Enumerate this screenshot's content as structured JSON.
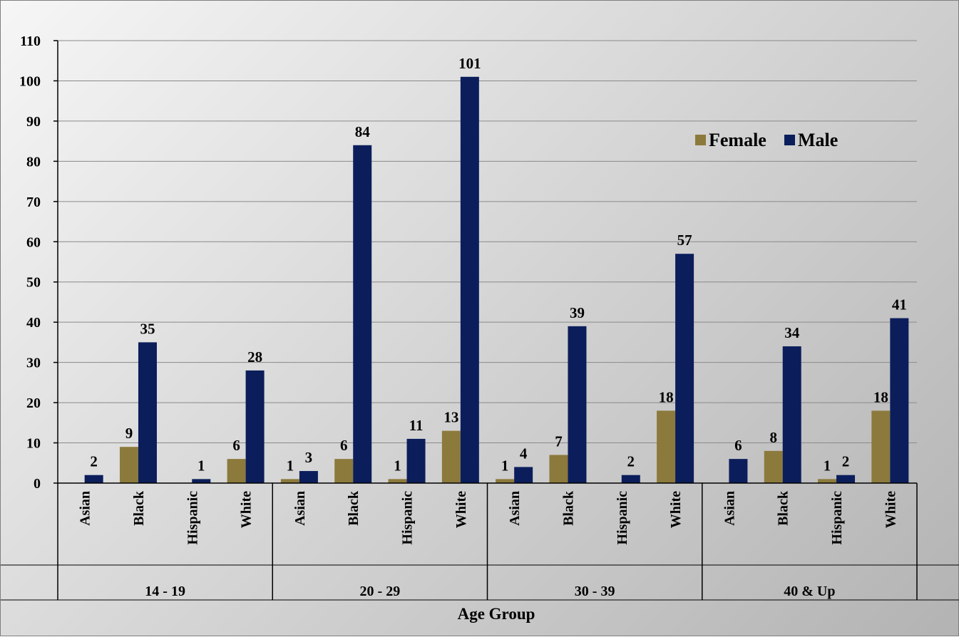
{
  "chart_data": {
    "type": "bar",
    "title": "",
    "xlabel": "Age Group",
    "ylabel": "",
    "ylim": [
      0,
      110
    ],
    "yticks": [
      0,
      10,
      20,
      30,
      40,
      50,
      60,
      70,
      80,
      90,
      100,
      110
    ],
    "grid": true,
    "legend_position": "top-right",
    "groups": [
      "14 - 19",
      "20 - 29",
      "30 - 39",
      "40 & Up"
    ],
    "categories": [
      "Asian",
      "Black",
      "Hispanic",
      "White"
    ],
    "series": [
      {
        "name": "Female",
        "color": "#8c7a3c",
        "values": [
          [
            0,
            9,
            0,
            6
          ],
          [
            1,
            6,
            1,
            13
          ],
          [
            1,
            7,
            0,
            18
          ],
          [
            0,
            8,
            1,
            18
          ]
        ]
      },
      {
        "name": "Male",
        "color": "#0b1e5b",
        "values": [
          [
            2,
            35,
            1,
            28
          ],
          [
            3,
            84,
            11,
            101
          ],
          [
            4,
            39,
            2,
            57
          ],
          [
            6,
            34,
            2,
            41
          ]
        ]
      }
    ]
  }
}
